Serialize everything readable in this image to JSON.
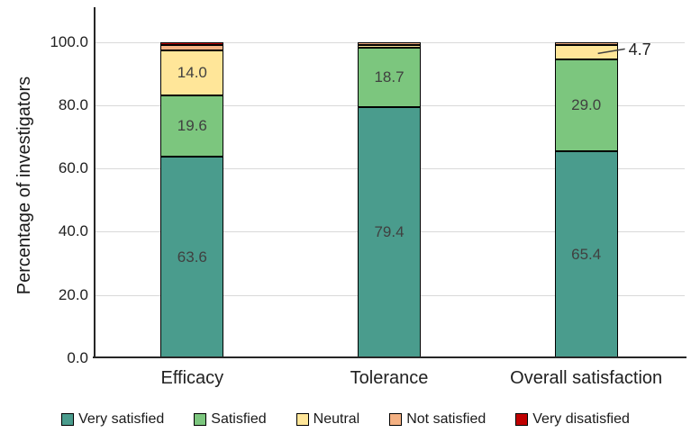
{
  "chart_data": {
    "type": "bar",
    "subtype": "stacked-vertical",
    "title": "",
    "xlabel": "",
    "ylabel": "Percentage of investigators",
    "ylim": [
      0,
      100
    ],
    "yticks": [
      "0.0",
      "20.0",
      "40.0",
      "60.0",
      "80.0",
      "100.0"
    ],
    "grid": true,
    "legend_position": "bottom",
    "categories": [
      "Efficacy",
      "Tolerance",
      "Overall satisfaction"
    ],
    "series": [
      {
        "name": "Very satisfied",
        "color": "#4A9C8D",
        "values": [
          63.6,
          79.4,
          65.4
        ]
      },
      {
        "name": "Satisfied",
        "color": "#7CC67E",
        "values": [
          19.6,
          18.7,
          29.0
        ]
      },
      {
        "name": "Neutral",
        "color": "#FFE699",
        "values": [
          14.0,
          0.9,
          4.7
        ]
      },
      {
        "name": "Not satisfied",
        "color": "#F4B183",
        "values": [
          1.9,
          1.0,
          0.9
        ]
      },
      {
        "name": "Very disatisfied",
        "color": "#C00000",
        "values": [
          0.9,
          0.0,
          0.0
        ]
      }
    ],
    "inside_label_min": 10,
    "label_decimals": 1,
    "label_color": "#404040",
    "callout": {
      "category_index": 2,
      "series_index": 2,
      "label": "4.7"
    },
    "colors": {
      "gridline": "#D9D9D9",
      "axis": "#262626",
      "segment_border": "#000000",
      "background": "#FFFFFF"
    }
  }
}
